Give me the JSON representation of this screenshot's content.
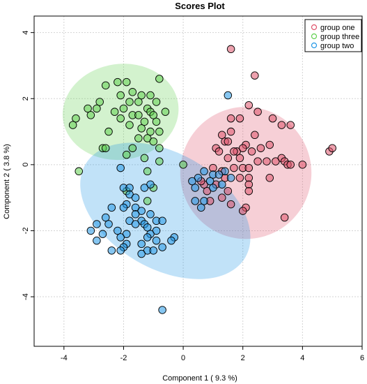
{
  "chart_data": {
    "type": "scatter",
    "title": "Scores Plot",
    "xlabel": "Component 1 ( 9.3 %)",
    "ylabel": "Component 2 ( 3.8 %)",
    "xlim": [
      -5,
      6
    ],
    "ylim": [
      -5.5,
      4.5
    ],
    "xticks": [
      -4,
      -2,
      0,
      2,
      4,
      6
    ],
    "yticks": [
      -4,
      -2,
      0,
      2,
      4
    ],
    "grid": true,
    "legend_position": "top-right",
    "series": [
      {
        "name": "group one",
        "color": "#DF536B",
        "ellipse": {
          "cx": 2.1,
          "cy": -0.25,
          "rx": 2.2,
          "ry": 2.0,
          "angle_deg": -5
        },
        "points": [
          [
            1.6,
            3.5
          ],
          [
            2.4,
            2.7
          ],
          [
            2.2,
            1.8
          ],
          [
            1.9,
            1.4
          ],
          [
            1.6,
            1.4
          ],
          [
            2.5,
            1.6
          ],
          [
            3.0,
            1.4
          ],
          [
            3.6,
            1.2
          ],
          [
            3.3,
            1.2
          ],
          [
            1.6,
            1.0
          ],
          [
            1.3,
            0.9
          ],
          [
            2.4,
            0.9
          ],
          [
            2.9,
            0.6
          ],
          [
            2.1,
            0.6
          ],
          [
            2.6,
            0.5
          ],
          [
            1.4,
            0.7
          ],
          [
            1.5,
            0.7
          ],
          [
            1.8,
            0.4
          ],
          [
            2.0,
            0.5
          ],
          [
            1.1,
            0.5
          ],
          [
            1.2,
            0.4
          ],
          [
            2.3,
            0.4
          ],
          [
            1.7,
            0.4
          ],
          [
            1.5,
            0.2
          ],
          [
            1.9,
            0.2
          ],
          [
            2.5,
            0.1
          ],
          [
            2.8,
            0.1
          ],
          [
            3.1,
            0.1
          ],
          [
            3.3,
            0.2
          ],
          [
            3.4,
            0.1
          ],
          [
            3.5,
            0.0
          ],
          [
            3.6,
            0.0
          ],
          [
            4.0,
            0.0
          ],
          [
            4.9,
            0.4
          ],
          [
            5.0,
            0.5
          ],
          [
            1.0,
            -0.1
          ],
          [
            1.3,
            -0.2
          ],
          [
            1.7,
            -0.1
          ],
          [
            2.0,
            -0.1
          ],
          [
            2.2,
            -0.1
          ],
          [
            2.2,
            -0.4
          ],
          [
            1.9,
            -0.4
          ],
          [
            1.4,
            -0.4
          ],
          [
            1.1,
            -0.6
          ],
          [
            0.7,
            -0.6
          ],
          [
            0.6,
            -0.5
          ],
          [
            0.8,
            -0.8
          ],
          [
            1.5,
            -0.8
          ],
          [
            2.2,
            -0.6
          ],
          [
            2.2,
            -0.8
          ],
          [
            2.9,
            -0.4
          ],
          [
            1.3,
            -1.0
          ],
          [
            0.9,
            -1.1
          ],
          [
            1.6,
            -1.2
          ],
          [
            2.1,
            -1.3
          ],
          [
            2.0,
            -1.4
          ],
          [
            3.4,
            -1.6
          ]
        ]
      },
      {
        "name": "group three",
        "color": "#61D04F",
        "ellipse": {
          "cx": -2.1,
          "cy": 1.6,
          "rx": 1.95,
          "ry": 1.45,
          "angle_deg": -8
        },
        "points": [
          [
            -1.9,
            2.5
          ],
          [
            -2.2,
            2.5
          ],
          [
            -2.6,
            2.4
          ],
          [
            -0.8,
            2.6
          ],
          [
            -1.7,
            2.2
          ],
          [
            -1.4,
            2.1
          ],
          [
            -1.1,
            2.1
          ],
          [
            -2.1,
            2.1
          ],
          [
            -2.8,
            1.9
          ],
          [
            -1.8,
            1.9
          ],
          [
            -1.5,
            1.9
          ],
          [
            -0.9,
            1.9
          ],
          [
            -3.2,
            1.7
          ],
          [
            -2.9,
            1.7
          ],
          [
            -2.0,
            1.7
          ],
          [
            -1.2,
            1.7
          ],
          [
            -0.6,
            1.6
          ],
          [
            -1.1,
            1.6
          ],
          [
            -2.3,
            1.6
          ],
          [
            -3.1,
            1.5
          ],
          [
            -1.7,
            1.5
          ],
          [
            -1.5,
            1.5
          ],
          [
            -1.0,
            1.5
          ],
          [
            -3.6,
            1.4
          ],
          [
            -2.1,
            1.4
          ],
          [
            -1.3,
            1.3
          ],
          [
            -0.9,
            1.3
          ],
          [
            -1.8,
            1.2
          ],
          [
            -3.7,
            1.2
          ],
          [
            -1.4,
            1.1
          ],
          [
            -1.1,
            1.0
          ],
          [
            -0.8,
            1.0
          ],
          [
            -2.5,
            1.0
          ],
          [
            -1.5,
            0.8
          ],
          [
            -1.2,
            0.8
          ],
          [
            -1.0,
            0.7
          ],
          [
            -0.8,
            0.5
          ],
          [
            -2.7,
            0.5
          ],
          [
            -2.6,
            0.5
          ],
          [
            -1.7,
            0.5
          ],
          [
            -1.9,
            0.3
          ],
          [
            -1.3,
            0.2
          ],
          [
            -0.8,
            0.1
          ],
          [
            0.0,
            0.0
          ],
          [
            -3.5,
            -0.2
          ],
          [
            -1.2,
            -0.2
          ],
          [
            -1.0,
            -0.7
          ],
          [
            -1.9,
            -0.8
          ],
          [
            -1.2,
            -1.1
          ]
        ]
      },
      {
        "name": "group two",
        "color": "#2297E6",
        "ellipse": {
          "cx": -0.6,
          "cy": -1.4,
          "rx": 3.1,
          "ry": 1.75,
          "angle_deg": 30
        },
        "points": [
          [
            1.5,
            2.1
          ],
          [
            1.0,
            -0.3
          ],
          [
            0.9,
            -0.5
          ],
          [
            0.7,
            -0.2
          ],
          [
            0.5,
            -0.4
          ],
          [
            0.3,
            -0.5
          ],
          [
            1.4,
            -0.2
          ],
          [
            1.2,
            -0.3
          ],
          [
            1.3,
            -0.6
          ],
          [
            1.6,
            -0.4
          ],
          [
            1.0,
            -0.7
          ],
          [
            0.4,
            -0.7
          ],
          [
            0.7,
            -1.1
          ],
          [
            0.4,
            -1.1
          ],
          [
            0.6,
            -1.3
          ],
          [
            -2.1,
            -0.1
          ],
          [
            -2.0,
            -0.7
          ],
          [
            -1.8,
            -0.7
          ],
          [
            -1.1,
            -0.6
          ],
          [
            -1.3,
            -0.7
          ],
          [
            -1.8,
            -0.9
          ],
          [
            -1.6,
            -1.0
          ],
          [
            -1.9,
            -1.2
          ],
          [
            -1.6,
            -1.3
          ],
          [
            -2.4,
            -1.3
          ],
          [
            -2.0,
            -1.3
          ],
          [
            -1.4,
            -1.4
          ],
          [
            -1.6,
            -1.5
          ],
          [
            -1.1,
            -1.5
          ],
          [
            -2.6,
            -1.6
          ],
          [
            -1.8,
            -1.7
          ],
          [
            -1.4,
            -1.7
          ],
          [
            -0.9,
            -1.7
          ],
          [
            -0.7,
            -1.7
          ],
          [
            -2.9,
            -1.8
          ],
          [
            -2.5,
            -1.8
          ],
          [
            -1.6,
            -1.8
          ],
          [
            -1.3,
            -1.8
          ],
          [
            -1.2,
            -1.9
          ],
          [
            -0.9,
            -2.0
          ],
          [
            -3.1,
            -2.0
          ],
          [
            -2.2,
            -2.0
          ],
          [
            -1.1,
            -2.1
          ],
          [
            -1.9,
            -2.1
          ],
          [
            -2.7,
            -2.1
          ],
          [
            -2.1,
            -2.2
          ],
          [
            -1.2,
            -2.2
          ],
          [
            -0.3,
            -2.2
          ],
          [
            -0.4,
            -2.3
          ],
          [
            -0.9,
            -2.3
          ],
          [
            -2.9,
            -2.3
          ],
          [
            -1.4,
            -2.4
          ],
          [
            -1.9,
            -2.4
          ],
          [
            -0.7,
            -2.5
          ],
          [
            -2.0,
            -2.5
          ],
          [
            -1.2,
            -2.6
          ],
          [
            -1.0,
            -2.6
          ],
          [
            -2.1,
            -2.6
          ],
          [
            -1.4,
            -2.7
          ],
          [
            -2.4,
            -2.6
          ],
          [
            -0.7,
            -4.4
          ]
        ]
      }
    ]
  }
}
